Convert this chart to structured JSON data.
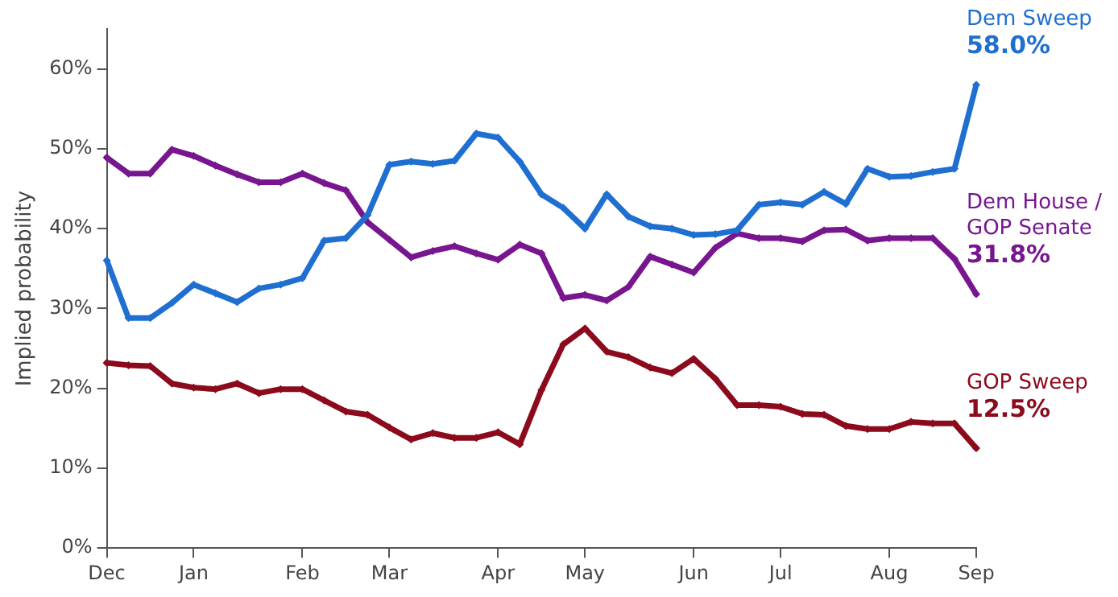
{
  "chart_data": {
    "type": "line",
    "ylabel": "Implied probability",
    "categories": [
      "Dec",
      null,
      null,
      null,
      "Jan",
      null,
      null,
      null,
      null,
      "Feb",
      null,
      null,
      null,
      "Mar",
      null,
      null,
      null,
      null,
      "Apr",
      null,
      null,
      null,
      "May",
      null,
      null,
      null,
      null,
      "Jun",
      null,
      null,
      null,
      "Jul",
      null,
      null,
      null,
      null,
      "Aug",
      null,
      null,
      null,
      "Sep"
    ],
    "ylim": [
      0,
      65
    ],
    "yticks": [
      {
        "value": 0,
        "label": "0%"
      },
      {
        "value": 10,
        "label": "10%"
      },
      {
        "value": 20,
        "label": "20%"
      },
      {
        "value": 30,
        "label": "30%"
      },
      {
        "value": 40,
        "label": "40%"
      },
      {
        "value": 50,
        "label": "50%"
      },
      {
        "value": 60,
        "label": "60%"
      }
    ],
    "grid": false,
    "legend": false,
    "marker": "diamond",
    "line_style": "solid",
    "series": [
      {
        "name": "Dem Sweep",
        "color": "#1f6fd1",
        "values": [
          36.0,
          28.8,
          28.8,
          30.7,
          33.0,
          31.9,
          30.8,
          32.5,
          33.0,
          33.8,
          38.5,
          38.8,
          41.7,
          48.0,
          48.4,
          48.1,
          48.5,
          51.9,
          51.4,
          48.4,
          44.3,
          42.6,
          40.0,
          44.3,
          41.5,
          40.3,
          40.0,
          39.2,
          39.3,
          39.8,
          43.0,
          43.3,
          43.0,
          44.6,
          43.1,
          47.5,
          46.5,
          46.6,
          47.1,
          47.5,
          58.0
        ],
        "value_labels": [
          null,
          null,
          null,
          null,
          null,
          null,
          null,
          null,
          null,
          null,
          null,
          null,
          null,
          null,
          null,
          null,
          null,
          null,
          null,
          null,
          null,
          null,
          null,
          null,
          null,
          null,
          null,
          null,
          null,
          null,
          null,
          null,
          null,
          null,
          null,
          null,
          null,
          null,
          null,
          null,
          "58.0%"
        ]
      },
      {
        "name": "Dem House / GOP Senate",
        "color": "#77168f",
        "values": [
          48.9,
          46.9,
          46.9,
          49.9,
          49.1,
          47.9,
          46.8,
          45.8,
          45.8,
          46.9,
          45.7,
          44.8,
          40.8,
          38.6,
          36.4,
          37.2,
          37.8,
          36.9,
          36.1,
          38.0,
          36.9,
          31.3,
          31.7,
          31.0,
          32.7,
          36.5,
          35.5,
          34.5,
          37.6,
          39.4,
          38.8,
          38.8,
          38.4,
          39.8,
          39.9,
          38.5,
          38.8,
          38.8,
          38.8,
          36.2,
          31.8
        ],
        "value_labels": [
          null,
          null,
          null,
          null,
          null,
          null,
          null,
          null,
          null,
          null,
          null,
          null,
          null,
          null,
          null,
          null,
          null,
          null,
          null,
          null,
          null,
          null,
          null,
          null,
          null,
          null,
          null,
          null,
          null,
          null,
          null,
          null,
          null,
          null,
          null,
          null,
          null,
          null,
          null,
          null,
          "31.8%"
        ]
      },
      {
        "name": "GOP Sweep",
        "color": "#8b0a1c",
        "values": [
          23.2,
          22.9,
          22.8,
          20.6,
          20.1,
          19.9,
          20.6,
          19.4,
          19.9,
          19.9,
          18.5,
          17.1,
          16.7,
          15.1,
          13.6,
          14.4,
          13.8,
          13.8,
          14.5,
          13.0,
          19.8,
          25.5,
          27.5,
          24.6,
          23.9,
          22.6,
          21.9,
          23.7,
          21.2,
          17.9,
          17.9,
          17.7,
          16.8,
          16.7,
          15.3,
          14.9,
          14.9,
          15.8,
          15.6,
          15.6,
          12.5
        ],
        "value_labels": [
          null,
          null,
          null,
          null,
          null,
          null,
          null,
          null,
          null,
          null,
          null,
          null,
          null,
          null,
          null,
          null,
          null,
          null,
          null,
          null,
          null,
          null,
          null,
          null,
          null,
          null,
          null,
          null,
          null,
          null,
          null,
          null,
          null,
          null,
          null,
          null,
          null,
          null,
          null,
          null,
          "12.5%"
        ]
      }
    ]
  }
}
